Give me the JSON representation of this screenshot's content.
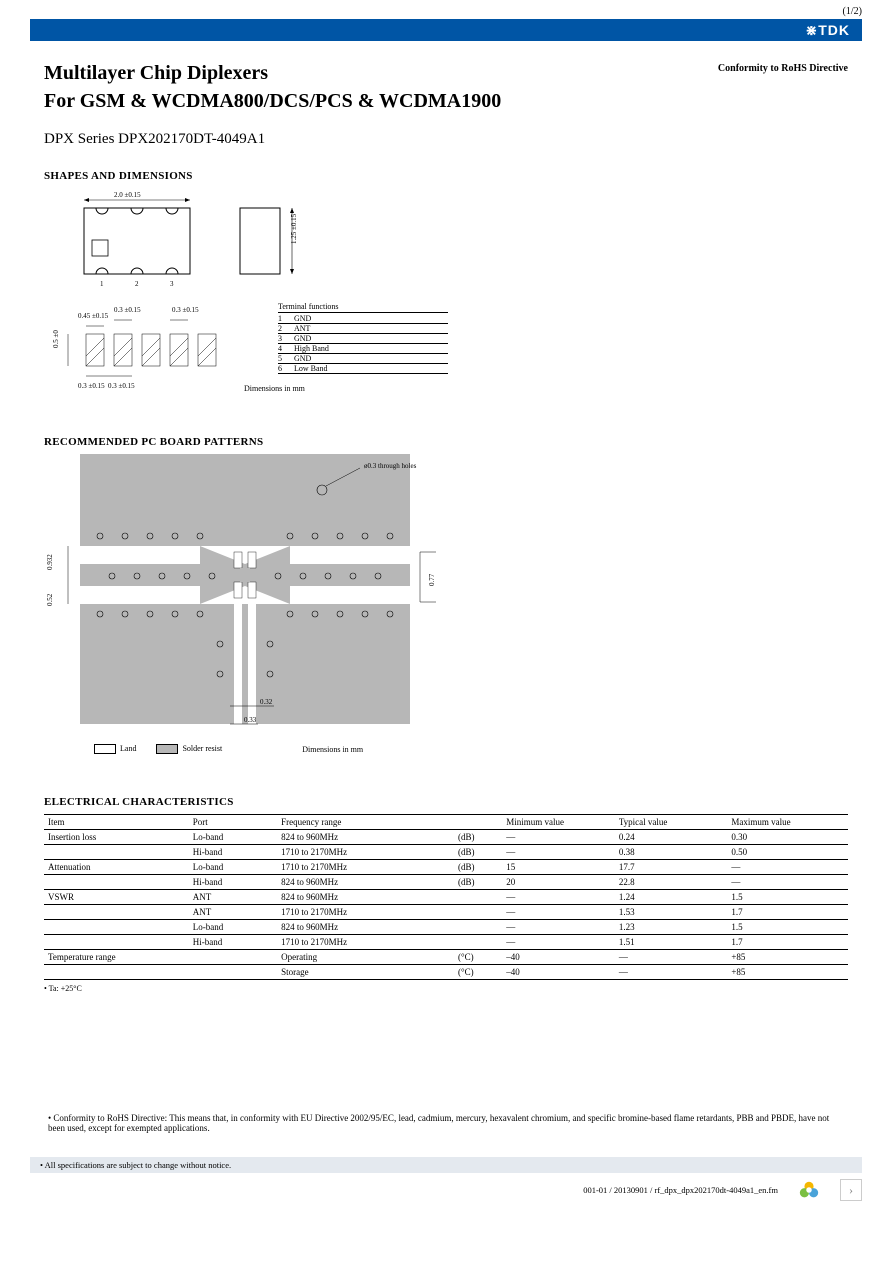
{
  "page_indicator": "(1/2)",
  "logo_text": "⋇TDK",
  "title_line1": "Multilayer Chip Diplexers",
  "title_line2": "For GSM & WCDMA800/DCS/PCS & WCDMA1900",
  "conformity": "Conformity to RoHS Directive",
  "series": "DPX Series  DPX202170DT-4049A1",
  "section_shapes": "SHAPES AND DIMENSIONS",
  "section_pcb": "RECOMMENDED PC BOARD PATTERNS",
  "section_elec": "ELECTRICAL CHARACTERISTICS",
  "shapes": {
    "top_width": "2.0  ±0.15",
    "side_height": "1.25  ±0.15",
    "bottom_a": "0.45  ±0.15",
    "bottom_b": "0.3  ±0.15",
    "bottom_c": "0.3  ±0.15",
    "bottom_d": "0.3  ±0.15",
    "left_h": "0.5  ±0",
    "pin1": "1",
    "pin2": "2",
    "pin3": "3",
    "dim_note": "Dimensions in mm"
  },
  "terminals": {
    "title": "Terminal functions",
    "rows": [
      {
        "n": "1",
        "f": "GND"
      },
      {
        "n": "2",
        "f": "ANT"
      },
      {
        "n": "3",
        "f": "GND"
      },
      {
        "n": "4",
        "f": "High Band"
      },
      {
        "n": "5",
        "f": "GND"
      },
      {
        "n": "6",
        "f": "Low Band"
      }
    ]
  },
  "pcb": {
    "through_hole": "ø0.3 through holes",
    "d1": "0.932",
    "d2": "0.52",
    "d3": "0.77",
    "d4": "0.32",
    "d5": "0.33",
    "legend_land": "Land",
    "legend_resist": "Solder resist",
    "dim_note": "Dimensions in mm"
  },
  "elec": {
    "headers": [
      "Item",
      "Port",
      "Frequency range",
      "",
      "Minimum value",
      "Typical value",
      "Maximum value"
    ],
    "rows": [
      {
        "item": "Insertion loss",
        "port": "Lo-band",
        "freq": "824 to 960MHz",
        "unit": "(dB)",
        "min": "—",
        "typ": "0.24",
        "max": "0.30"
      },
      {
        "item": "",
        "port": "Hi-band",
        "freq": "1710 to 2170MHz",
        "unit": "(dB)",
        "min": "—",
        "typ": "0.38",
        "max": "0.50"
      },
      {
        "item": "Attenuation",
        "port": "Lo-band",
        "freq": "1710 to 2170MHz",
        "unit": "(dB)",
        "min": "15",
        "typ": "17.7",
        "max": "—"
      },
      {
        "item": "",
        "port": "Hi-band",
        "freq": "824 to 960MHz",
        "unit": "(dB)",
        "min": "20",
        "typ": "22.8",
        "max": "—"
      },
      {
        "item": "VSWR",
        "port": "ANT",
        "freq": "824 to 960MHz",
        "unit": "",
        "min": "—",
        "typ": "1.24",
        "max": "1.5"
      },
      {
        "item": "",
        "port": "ANT",
        "freq": "1710 to 2170MHz",
        "unit": "",
        "min": "—",
        "typ": "1.53",
        "max": "1.7"
      },
      {
        "item": "",
        "port": "Lo-band",
        "freq": "824 to 960MHz",
        "unit": "",
        "min": "—",
        "typ": "1.23",
        "max": "1.5"
      },
      {
        "item": "",
        "port": "Hi-band",
        "freq": "1710 to 2170MHz",
        "unit": "",
        "min": "—",
        "typ": "1.51",
        "max": "1.7"
      },
      {
        "item": "Temperature range",
        "port": "",
        "freq": "Operating",
        "unit": "(°C)",
        "min": "–40",
        "typ": "—",
        "max": "+85"
      },
      {
        "item": "",
        "port": "",
        "freq": "Storage",
        "unit": "(°C)",
        "min": "–40",
        "typ": "—",
        "max": "+85"
      }
    ],
    "note": "• Ta: +25°C"
  },
  "rohs_note": "• Conformity to RoHS Directive: This means that, in conformity with EU Directive 2002/95/EC, lead, cadmium, mercury, hexavalent chromium, and specific bromine-based flame retardants, PBB and PBDE, have not been used, except for exempted applications.",
  "spec_note": "• All specifications are subject to change without notice.",
  "footer_code": "001-01 / 20130901 / rf_dpx_dpx202170dt-4049a1_en.fm",
  "nav_next": "›"
}
